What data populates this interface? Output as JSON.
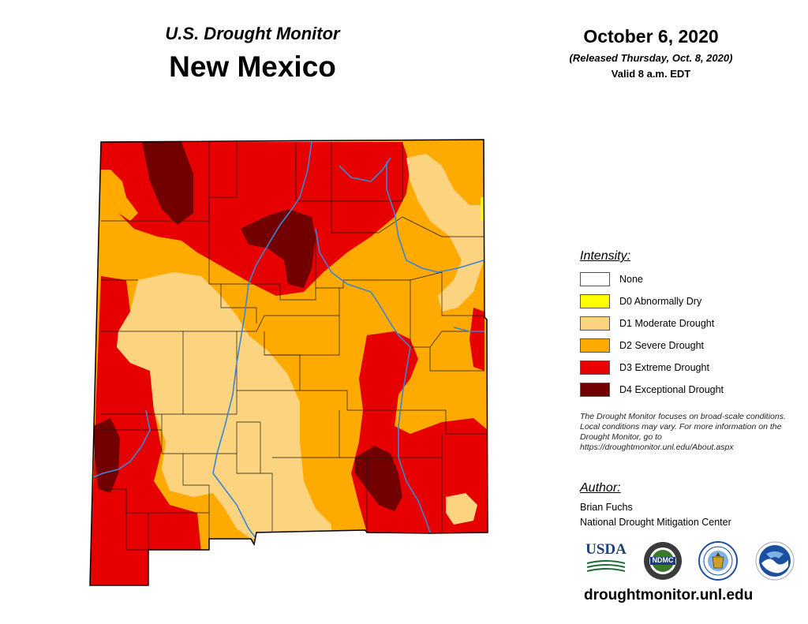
{
  "header": {
    "subtitle": "U.S. Drought Monitor",
    "state": "New Mexico",
    "date": "October 6, 2020",
    "released": "(Released Thursday, Oct. 8, 2020)",
    "valid": "Valid 8 a.m. EDT"
  },
  "legend": {
    "title": "Intensity:",
    "items": [
      {
        "label": "None",
        "color": "#ffffff"
      },
      {
        "label": "D0 Abnormally Dry",
        "color": "#ffff00"
      },
      {
        "label": "D1 Moderate Drought",
        "color": "#fcd37f"
      },
      {
        "label": "D2 Severe Drought",
        "color": "#ffaa00"
      },
      {
        "label": "D3 Extreme Drought",
        "color": "#e60000"
      },
      {
        "label": "D4 Exceptional Drought",
        "color": "#730000"
      }
    ]
  },
  "note": "The Drought Monitor focuses on broad-scale conditions. Local conditions may vary. For more information on the Drought Monitor, go to https://droughtmonitor.unl.edu/About.aspx",
  "author": {
    "title": "Author:",
    "name": "Brian Fuchs",
    "org": "National Drought Mitigation Center"
  },
  "logos": {
    "usda": "USDA",
    "ndmc": "NDMC"
  },
  "website": "droughtmonitor.unl.edu"
}
